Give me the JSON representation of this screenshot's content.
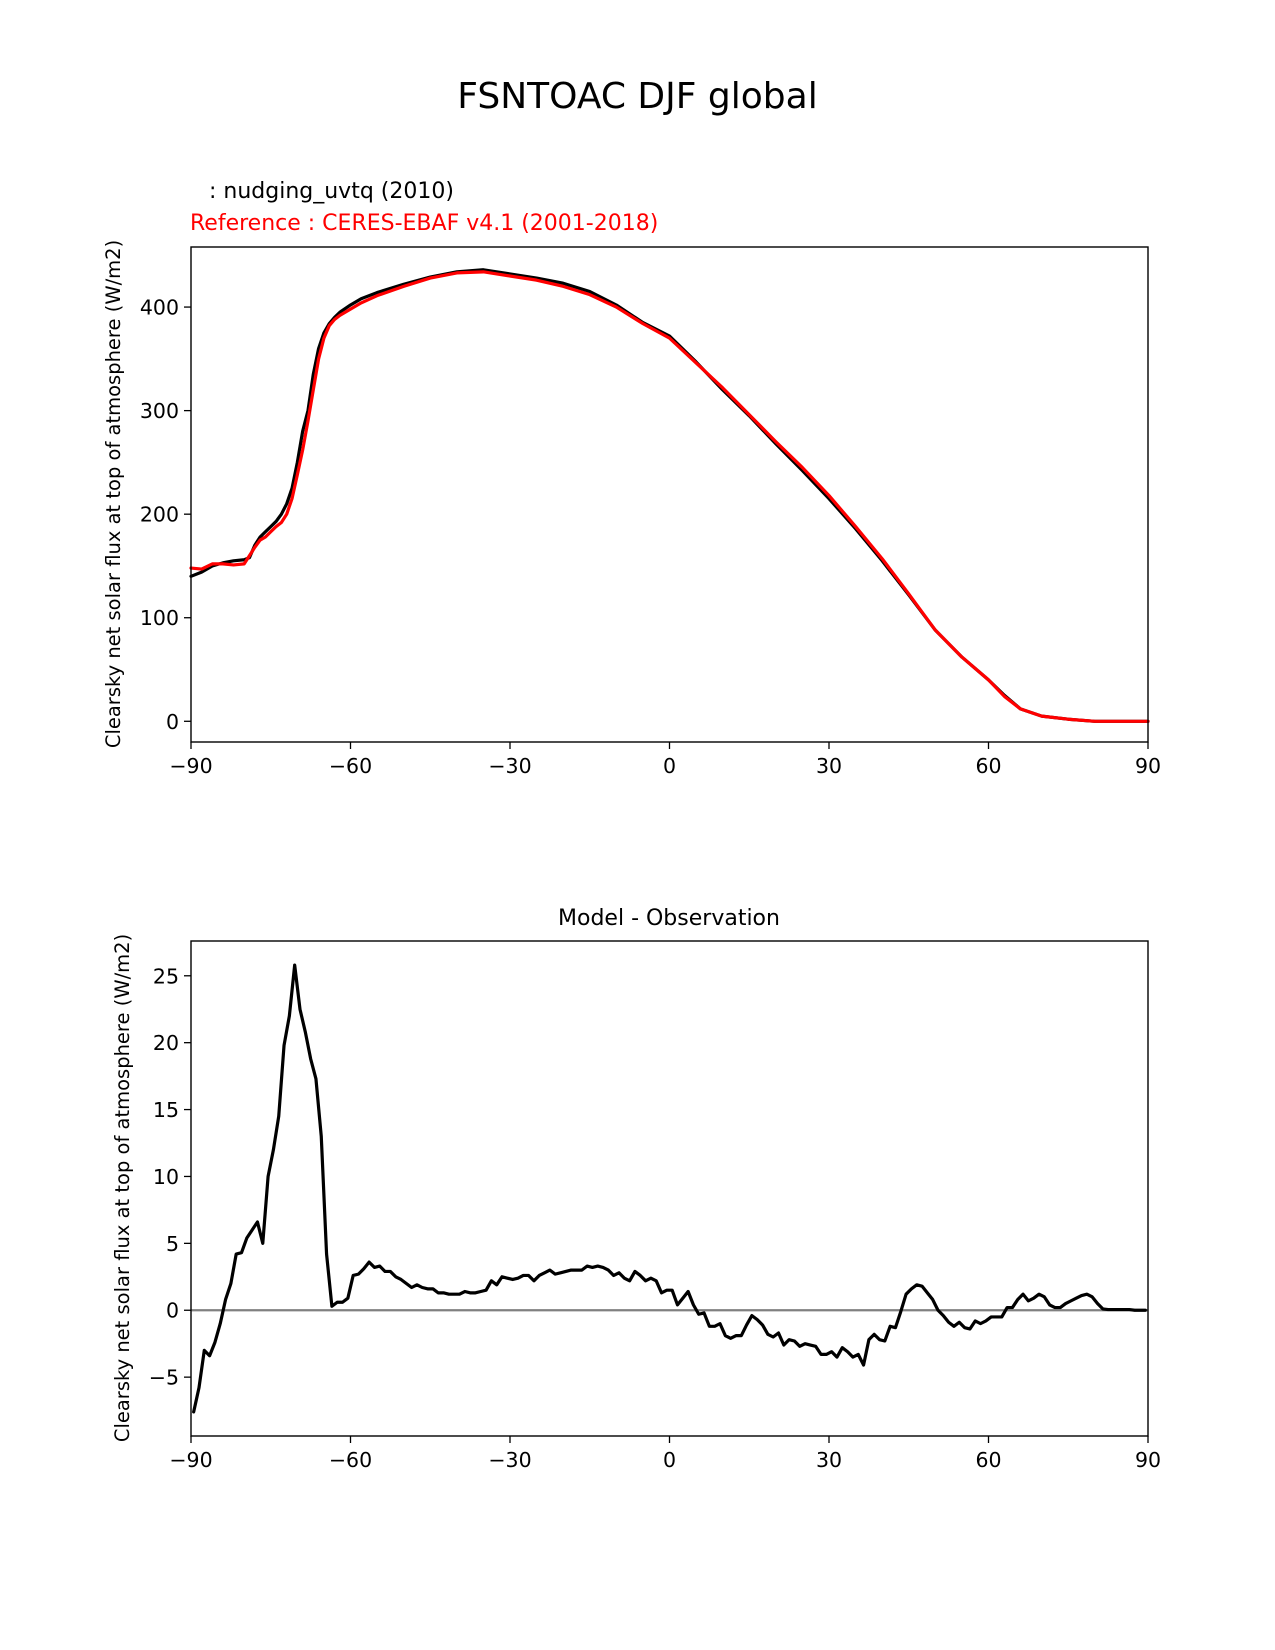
{
  "figure": {
    "suptitle": "FSNTOAC DJF global"
  },
  "chart_data": [
    {
      "type": "line",
      "test_label": " : nudging_uvtq (2010)",
      "ref_label": "Reference : CERES-EBAF v4.1 (2001-2018)",
      "ylabel": "Clearsky net solar flux at top of atmosphere (W/m2)",
      "xlim": [
        -90,
        90
      ],
      "ylim": [
        -20,
        458
      ],
      "xticks": [
        -90,
        -60,
        -30,
        0,
        30,
        60,
        90
      ],
      "xtick_labels": [
        "−90",
        "−60",
        "−30",
        "0",
        "30",
        "60",
        "90"
      ],
      "yticks": [
        0,
        100,
        200,
        300,
        400
      ],
      "ytick_labels": [
        "0",
        "100",
        "200",
        "300",
        "400"
      ],
      "series": [
        {
          "color": "#000000",
          "x": [
            -90,
            -88,
            -86,
            -84,
            -82,
            -80,
            -79,
            -78,
            -77,
            -76,
            -75,
            -74,
            -73,
            -72,
            -71,
            -70,
            -69,
            -68,
            -67,
            -66,
            -65,
            -64,
            -63,
            -62,
            -60,
            -58,
            -55,
            -50,
            -45,
            -40,
            -35,
            -30,
            -25,
            -20,
            -15,
            -10,
            -5,
            0,
            5,
            10,
            15,
            20,
            25,
            30,
            35,
            40,
            45,
            50,
            55,
            60,
            63,
            66,
            70,
            75,
            80,
            85,
            90
          ],
          "y": [
            140,
            144,
            150,
            153,
            155,
            156,
            158,
            170,
            178,
            183,
            188,
            193,
            200,
            210,
            225,
            250,
            280,
            300,
            335,
            360,
            375,
            384,
            390,
            395,
            402,
            408,
            414,
            422,
            429,
            434,
            436,
            432,
            428,
            423,
            415,
            402,
            385,
            372,
            347,
            320,
            295,
            268,
            242,
            215,
            186,
            155,
            122,
            88,
            62,
            40,
            25,
            12,
            5,
            2,
            0,
            0,
            0
          ]
        },
        {
          "color": "#ff0000",
          "x": [
            -90,
            -88,
            -86,
            -84,
            -82,
            -80,
            -79,
            -78,
            -77,
            -76,
            -75,
            -74,
            -73,
            -72,
            -71,
            -70,
            -69,
            -68,
            -67,
            -66,
            -65,
            -64,
            -63,
            -62,
            -60,
            -58,
            -55,
            -50,
            -45,
            -40,
            -35,
            -30,
            -25,
            -20,
            -15,
            -10,
            -5,
            0,
            5,
            10,
            15,
            20,
            25,
            30,
            35,
            40,
            45,
            50,
            55,
            60,
            63,
            66,
            70,
            75,
            80,
            85,
            90
          ],
          "y": [
            148,
            147,
            152,
            152,
            151,
            152,
            160,
            168,
            175,
            178,
            183,
            188,
            192,
            200,
            215,
            238,
            262,
            290,
            320,
            350,
            370,
            382,
            388,
            392,
            398,
            404,
            411,
            420,
            428,
            433,
            434,
            430,
            426,
            420,
            412,
            400,
            384,
            370,
            346,
            322,
            296,
            270,
            245,
            218,
            188,
            157,
            123,
            88,
            62,
            40,
            24,
            12,
            5,
            2,
            0,
            0,
            0
          ]
        }
      ]
    },
    {
      "type": "line",
      "title": "Model - Observation",
      "ylabel": "Clearsky net solar flux at top of atmosphere (W/m2)",
      "xlim": [
        -90,
        90
      ],
      "ylim": [
        -9.4,
        27.6
      ],
      "xticks": [
        -90,
        -60,
        -30,
        0,
        30,
        60,
        90
      ],
      "xtick_labels": [
        "−90",
        "−60",
        "−30",
        "0",
        "30",
        "60",
        "90"
      ],
      "yticks": [
        -5,
        0,
        5,
        10,
        15,
        20,
        25
      ],
      "ytick_labels": [
        "−5",
        "0",
        "5",
        "10",
        "15",
        "20",
        "25"
      ],
      "zero_line_color": "#808080",
      "series": [
        {
          "color": "#000000",
          "x": [
            -89.5,
            -88.5,
            -87.5,
            -86.5,
            -85.5,
            -84.5,
            -83.5,
            -82.5,
            -81.5,
            -80.5,
            -79.5,
            -78.5,
            -77.5,
            -76.5,
            -75.5,
            -74.5,
            -73.5,
            -72.5,
            -71.5,
            -70.5,
            -69.5,
            -68.5,
            -67.5,
            -66.5,
            -65.5,
            -64.5,
            -63.5,
            -62.5,
            -61.5,
            -60.5,
            -59.5,
            -58.5,
            -57.5,
            -56.5,
            -55.5,
            -54.5,
            -53.5,
            -52.5,
            -51.5,
            -50.5,
            -49.5,
            -48.5,
            -47.5,
            -46.5,
            -45.5,
            -44.5,
            -43.5,
            -42.5,
            -41.5,
            -40.5,
            -39.5,
            -38.5,
            -37.5,
            -36.5,
            -35.5,
            -34.5,
            -33.5,
            -32.5,
            -31.5,
            -30.5,
            -29.5,
            -28.5,
            -27.5,
            -26.5,
            -25.5,
            -24.5,
            -23.5,
            -22.5,
            -21.5,
            -20.5,
            -19.5,
            -18.5,
            -17.5,
            -16.5,
            -15.5,
            -14.5,
            -13.5,
            -12.5,
            -11.5,
            -10.5,
            -9.5,
            -8.5,
            -7.5,
            -6.5,
            -5.5,
            -4.5,
            -3.5,
            -2.5,
            -1.5,
            -0.5,
            0.5,
            1.5,
            2.5,
            3.5,
            4.5,
            5.5,
            6.5,
            7.5,
            8.5,
            9.5,
            10.5,
            11.5,
            12.5,
            13.5,
            14.5,
            15.5,
            16.5,
            17.5,
            18.5,
            19.5,
            20.5,
            21.5,
            22.5,
            23.5,
            24.5,
            25.5,
            26.5,
            27.5,
            28.5,
            29.5,
            30.5,
            31.5,
            32.5,
            33.5,
            34.5,
            35.5,
            36.5,
            37.5,
            38.5,
            39.5,
            40.5,
            41.5,
            42.5,
            43.5,
            44.5,
            45.5,
            46.5,
            47.5,
            48.5,
            49.5,
            50.5,
            51.5,
            52.5,
            53.5,
            54.5,
            55.5,
            56.5,
            57.5,
            58.5,
            59.5,
            60.5,
            61.5,
            62.5,
            63.5,
            64.5,
            65.5,
            66.5,
            67.5,
            68.5,
            69.5,
            70.5,
            71.5,
            72.5,
            73.5,
            74.5,
            75.5,
            76.5,
            77.5,
            78.5,
            79.5,
            80.5,
            81.5,
            82.5,
            83.5,
            84.5,
            85.5,
            86.5,
            87.5,
            88.5,
            89.5
          ],
          "y": [
            -7.6,
            -5.8,
            -3.0,
            -3.4,
            -2.4,
            -1.0,
            0.8,
            2.0,
            4.2,
            4.3,
            5.4,
            6.0,
            6.6,
            5.0,
            10.0,
            12.0,
            14.5,
            19.8,
            22.0,
            25.8,
            22.5,
            20.8,
            18.8,
            17.3,
            13.0,
            4.2,
            0.3,
            0.6,
            0.6,
            0.9,
            2.6,
            2.7,
            3.1,
            3.6,
            3.2,
            3.3,
            2.9,
            2.9,
            2.5,
            2.3,
            2.0,
            1.7,
            1.9,
            1.7,
            1.6,
            1.6,
            1.3,
            1.3,
            1.2,
            1.2,
            1.2,
            1.4,
            1.3,
            1.3,
            1.4,
            1.5,
            2.2,
            1.9,
            2.5,
            2.4,
            2.3,
            2.4,
            2.6,
            2.6,
            2.2,
            2.6,
            2.8,
            3.0,
            2.7,
            2.8,
            2.9,
            3.0,
            3.0,
            3.0,
            3.3,
            3.2,
            3.3,
            3.2,
            3.0,
            2.6,
            2.8,
            2.4,
            2.2,
            2.9,
            2.6,
            2.2,
            2.4,
            2.2,
            1.3,
            1.5,
            1.5,
            0.4,
            0.9,
            1.4,
            0.4,
            -0.3,
            -0.2,
            -1.2,
            -1.2,
            -1.0,
            -1.9,
            -2.1,
            -1.9,
            -1.9,
            -1.1,
            -0.4,
            -0.7,
            -1.1,
            -1.8,
            -2.0,
            -1.7,
            -2.6,
            -2.2,
            -2.3,
            -2.7,
            -2.5,
            -2.6,
            -2.7,
            -3.3,
            -3.3,
            -3.1,
            -3.5,
            -2.8,
            -3.1,
            -3.5,
            -3.3,
            -4.1,
            -2.2,
            -1.8,
            -2.2,
            -2.3,
            -1.2,
            -1.3,
            -0.1,
            1.2,
            1.6,
            1.9,
            1.8,
            1.3,
            0.8,
            0.0,
            -0.4,
            -0.9,
            -1.2,
            -0.9,
            -1.3,
            -1.4,
            -0.8,
            -1.0,
            -0.8,
            -0.5,
            -0.5,
            -0.5,
            0.2,
            0.2,
            0.8,
            1.2,
            0.7,
            0.9,
            1.2,
            1.0,
            0.4,
            0.2,
            0.2,
            0.5,
            0.7,
            0.9,
            1.1,
            1.2,
            1.0,
            0.5,
            0.1,
            0.05,
            0.05,
            0.05,
            0.05,
            0.05,
            0.0,
            0.0,
            0.0
          ]
        }
      ]
    }
  ]
}
